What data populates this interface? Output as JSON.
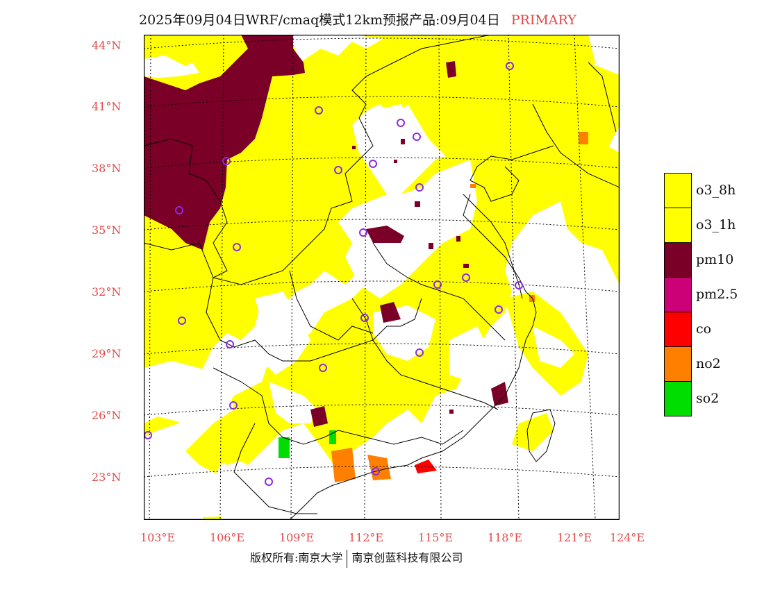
{
  "title": "2025年09月04日WRF/cmaq模式12km预报产品:09月04日",
  "title_tag": "PRIMARY",
  "lat_labels": [
    "44°N",
    "41°N",
    "38°N",
    "35°N",
    "32°N",
    "29°N",
    "26°N",
    "23°N"
  ],
  "lon_labels": [
    "103°E",
    "106°E",
    "109°E",
    "112°E",
    "115°E",
    "118°E",
    "121°E",
    "124°E"
  ],
  "legend": [
    {
      "label": "o3_8h",
      "color": "#ffff00"
    },
    {
      "label": "o3_1h",
      "color": "#ffff00"
    },
    {
      "label": "pm10",
      "color": "#7a0028"
    },
    {
      "label": "pm2.5",
      "color": "#cc0077"
    },
    {
      "label": "co",
      "color": "#ff0000"
    },
    {
      "label": "no2",
      "color": "#ff7f00"
    },
    {
      "label": "so2",
      "color": "#00dd00"
    }
  ],
  "footer_left": "版权所有:南京大学",
  "footer_right": "南京创蓝科技有限公司",
  "colors": {
    "label_red": "#e34848",
    "station": "#8a2be2"
  }
}
